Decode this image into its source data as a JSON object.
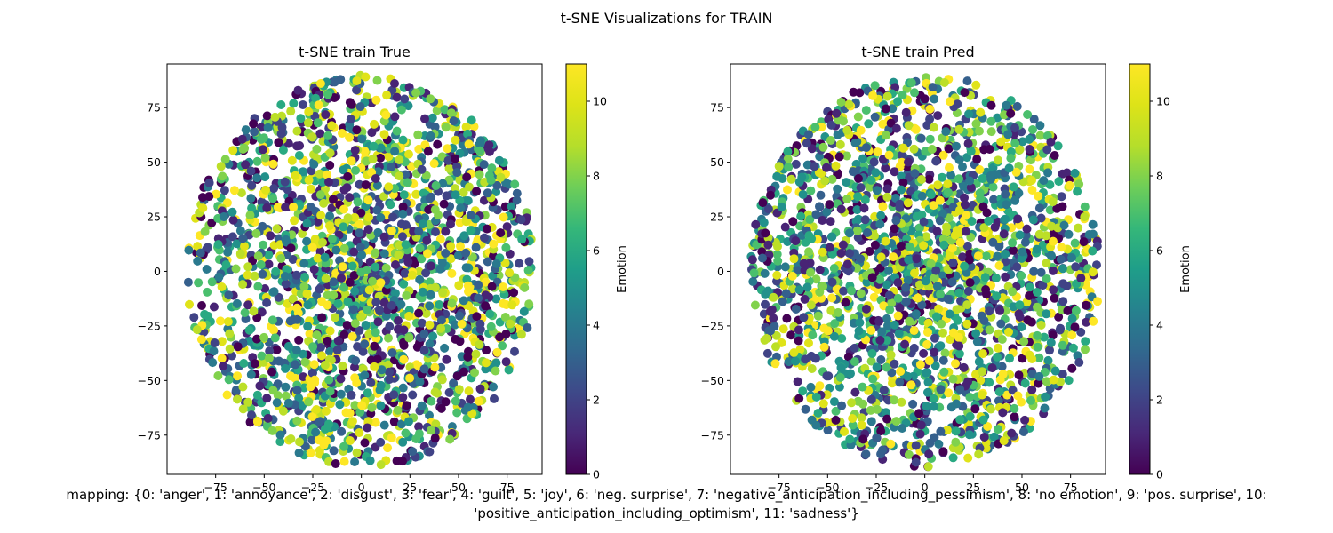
{
  "figure": {
    "suptitle": "t-SNE Visualizations for TRAIN",
    "caption_line1": "mapping: {0: 'anger', 1: 'annoyance', 2: 'disgust', 3: 'fear', 4: 'guilt', 5: 'joy', 6: 'neg. surprise', 7: 'negative_anticipation_including_pessimism', 8: 'no emotion', 9: 'pos. surprise', 10:",
    "caption_line2": "'positive_anticipation_including_optimism', 11: 'sadness'}"
  },
  "chart_data": [
    {
      "type": "scatter",
      "title": "t-SNE train True",
      "xlim": [
        -100,
        93
      ],
      "ylim": [
        -93,
        95
      ],
      "xticks": [
        -75,
        -50,
        -25,
        0,
        25,
        50,
        75
      ],
      "yticks": [
        -75,
        -50,
        -25,
        0,
        25,
        50,
        75
      ],
      "xtick_labels": [
        "−75",
        "−50",
        "−25",
        "0",
        "25",
        "50",
        "75"
      ],
      "ytick_labels": [
        "−75",
        "−50",
        "−25",
        "0",
        "25",
        "50",
        "75"
      ],
      "colormap": "viridis",
      "color_range": [
        0,
        11
      ],
      "colorbar_label": "Emotion",
      "colorbar_ticks": [
        0,
        2,
        4,
        6,
        8,
        10
      ],
      "colorbar_tick_labels": [
        "0",
        "2",
        "4",
        "6",
        "8",
        "10"
      ],
      "points": {
        "count": 2200,
        "shape": "disk",
        "center": [
          0,
          0
        ],
        "radius": 90,
        "value_range": [
          0,
          11
        ]
      },
      "grid": false,
      "legend": "none"
    },
    {
      "type": "scatter",
      "title": "t-SNE train Pred",
      "xlim": [
        -100,
        93
      ],
      "ylim": [
        -93,
        95
      ],
      "xticks": [
        -75,
        -50,
        -25,
        0,
        25,
        50,
        75
      ],
      "yticks": [
        -75,
        -50,
        -25,
        0,
        25,
        50,
        75
      ],
      "xtick_labels": [
        "−75",
        "−50",
        "−25",
        "0",
        "25",
        "50",
        "75"
      ],
      "ytick_labels": [
        "−75",
        "−50",
        "−25",
        "0",
        "25",
        "50",
        "75"
      ],
      "colormap": "viridis",
      "color_range": [
        0,
        11
      ],
      "colorbar_label": "Emotion",
      "colorbar_ticks": [
        0,
        2,
        4,
        6,
        8,
        10
      ],
      "colorbar_tick_labels": [
        "0",
        "2",
        "4",
        "6",
        "8",
        "10"
      ],
      "points": {
        "count": 2200,
        "shape": "disk",
        "center": [
          0,
          0
        ],
        "radius": 90,
        "value_range": [
          0,
          11
        ]
      },
      "grid": false,
      "legend": "none"
    }
  ]
}
